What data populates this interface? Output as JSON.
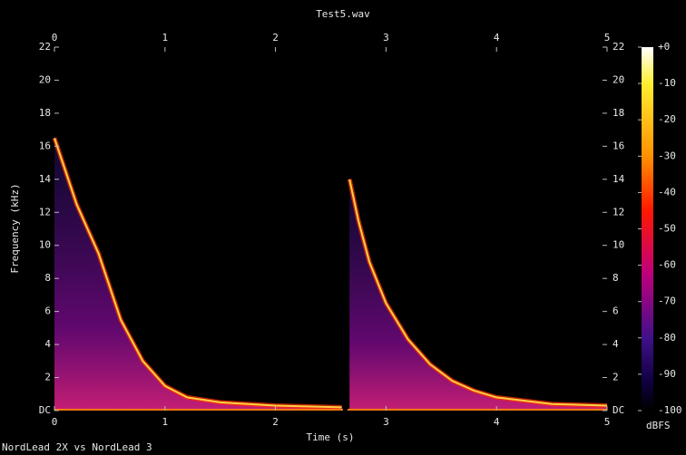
{
  "chart_data": {
    "type": "spectrogram",
    "title": "Test5.wav",
    "xlabel": "Time (s)",
    "ylabel": "Frequency (kHz)",
    "footer": "NordLead 2X vs NordLead 3",
    "colorbar_label": "dBFS",
    "xlim": [
      0,
      5
    ],
    "xticks": [
      0,
      1,
      2,
      3,
      4,
      5
    ],
    "ylim": [
      0,
      22
    ],
    "yticks": [
      {
        "value": 0,
        "label": "DC"
      },
      2,
      4,
      6,
      8,
      10,
      12,
      14,
      16,
      18,
      20,
      22
    ],
    "clim": [
      -100,
      0
    ],
    "cticks": [
      {
        "value": 0,
        "label": "+0"
      },
      -10,
      -20,
      -30,
      -40,
      -50,
      -60,
      -70,
      -80,
      -90,
      -100
    ],
    "series": [
      {
        "color": "#ffd040",
        "x": [
          0,
          0.1,
          0.2,
          0.3,
          0.4,
          0.5,
          0.6,
          0.8,
          1.0,
          1.2,
          1.5,
          2.0,
          2.6
        ],
        "values": [
          16.5,
          14.5,
          12.5,
          11,
          9.5,
          7.5,
          5.5,
          3,
          1.5,
          0.8,
          0.5,
          0.3,
          0.2
        ]
      },
      {
        "color": "#ffd040",
        "x": [
          2.67,
          2.75,
          2.85,
          3.0,
          3.2,
          3.4,
          3.6,
          3.8,
          4.0,
          4.5,
          5.0
        ],
        "values": [
          14,
          11.5,
          9,
          6.5,
          4.3,
          2.8,
          1.8,
          1.2,
          0.8,
          0.4,
          0.3
        ]
      }
    ]
  }
}
